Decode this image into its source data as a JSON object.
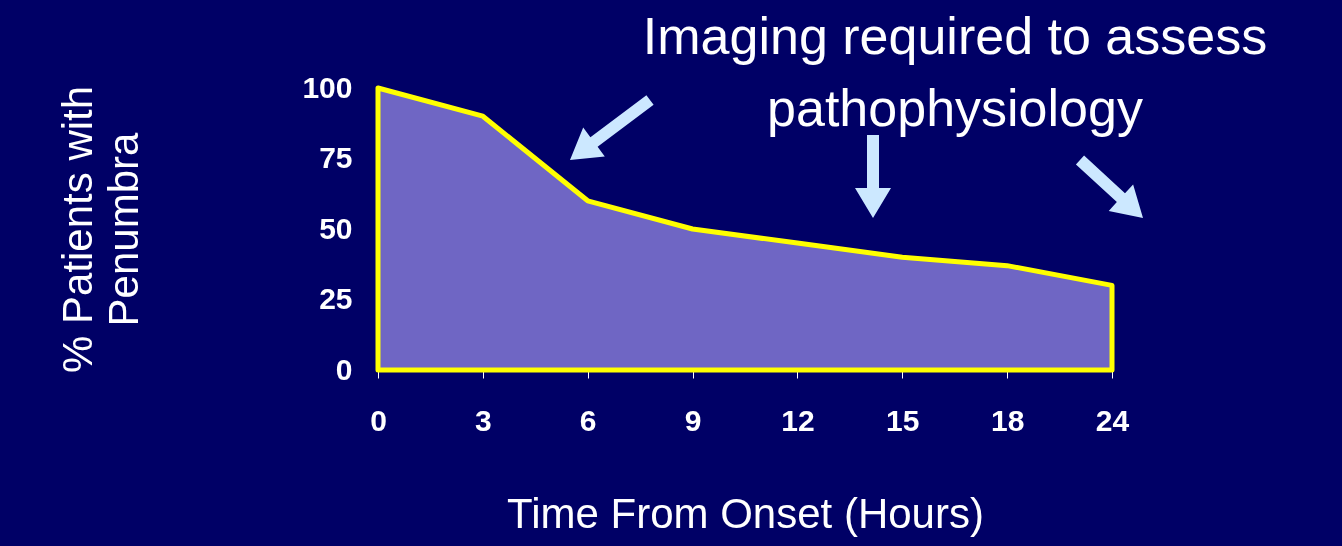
{
  "chart_data": {
    "type": "area",
    "xlabel": "Time From Onset (Hours)",
    "ylabel": "% Patients with Penumbra",
    "categories": [
      "0",
      "3",
      "6",
      "9",
      "12",
      "15",
      "18",
      "24"
    ],
    "series": [
      {
        "color": "#6f66c4",
        "values": [
          100,
          90,
          60,
          50,
          45,
          40,
          37,
          30
        ]
      }
    ],
    "ylim": [
      0,
      100
    ],
    "yticks": [
      0,
      25,
      50,
      75,
      100
    ],
    "grid": false,
    "annotations": [
      "Imaging required to assess pathophysiology"
    ]
  }
}
